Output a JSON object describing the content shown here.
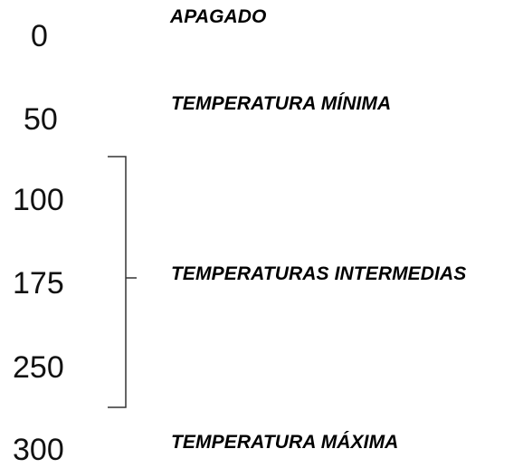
{
  "scale": {
    "values": [
      "0",
      "50",
      "100",
      "175",
      "250",
      "300"
    ]
  },
  "labels": {
    "off": "APAGADO",
    "min_temp": "TEMPERATURA MÍNIMA",
    "intermediate_temps": "TEMPERATURAS INTERMEDIAS",
    "max_temp": "TEMPERATURA MÁXIMA"
  },
  "colors": {
    "text": "#000000",
    "bracket": "#333333"
  }
}
